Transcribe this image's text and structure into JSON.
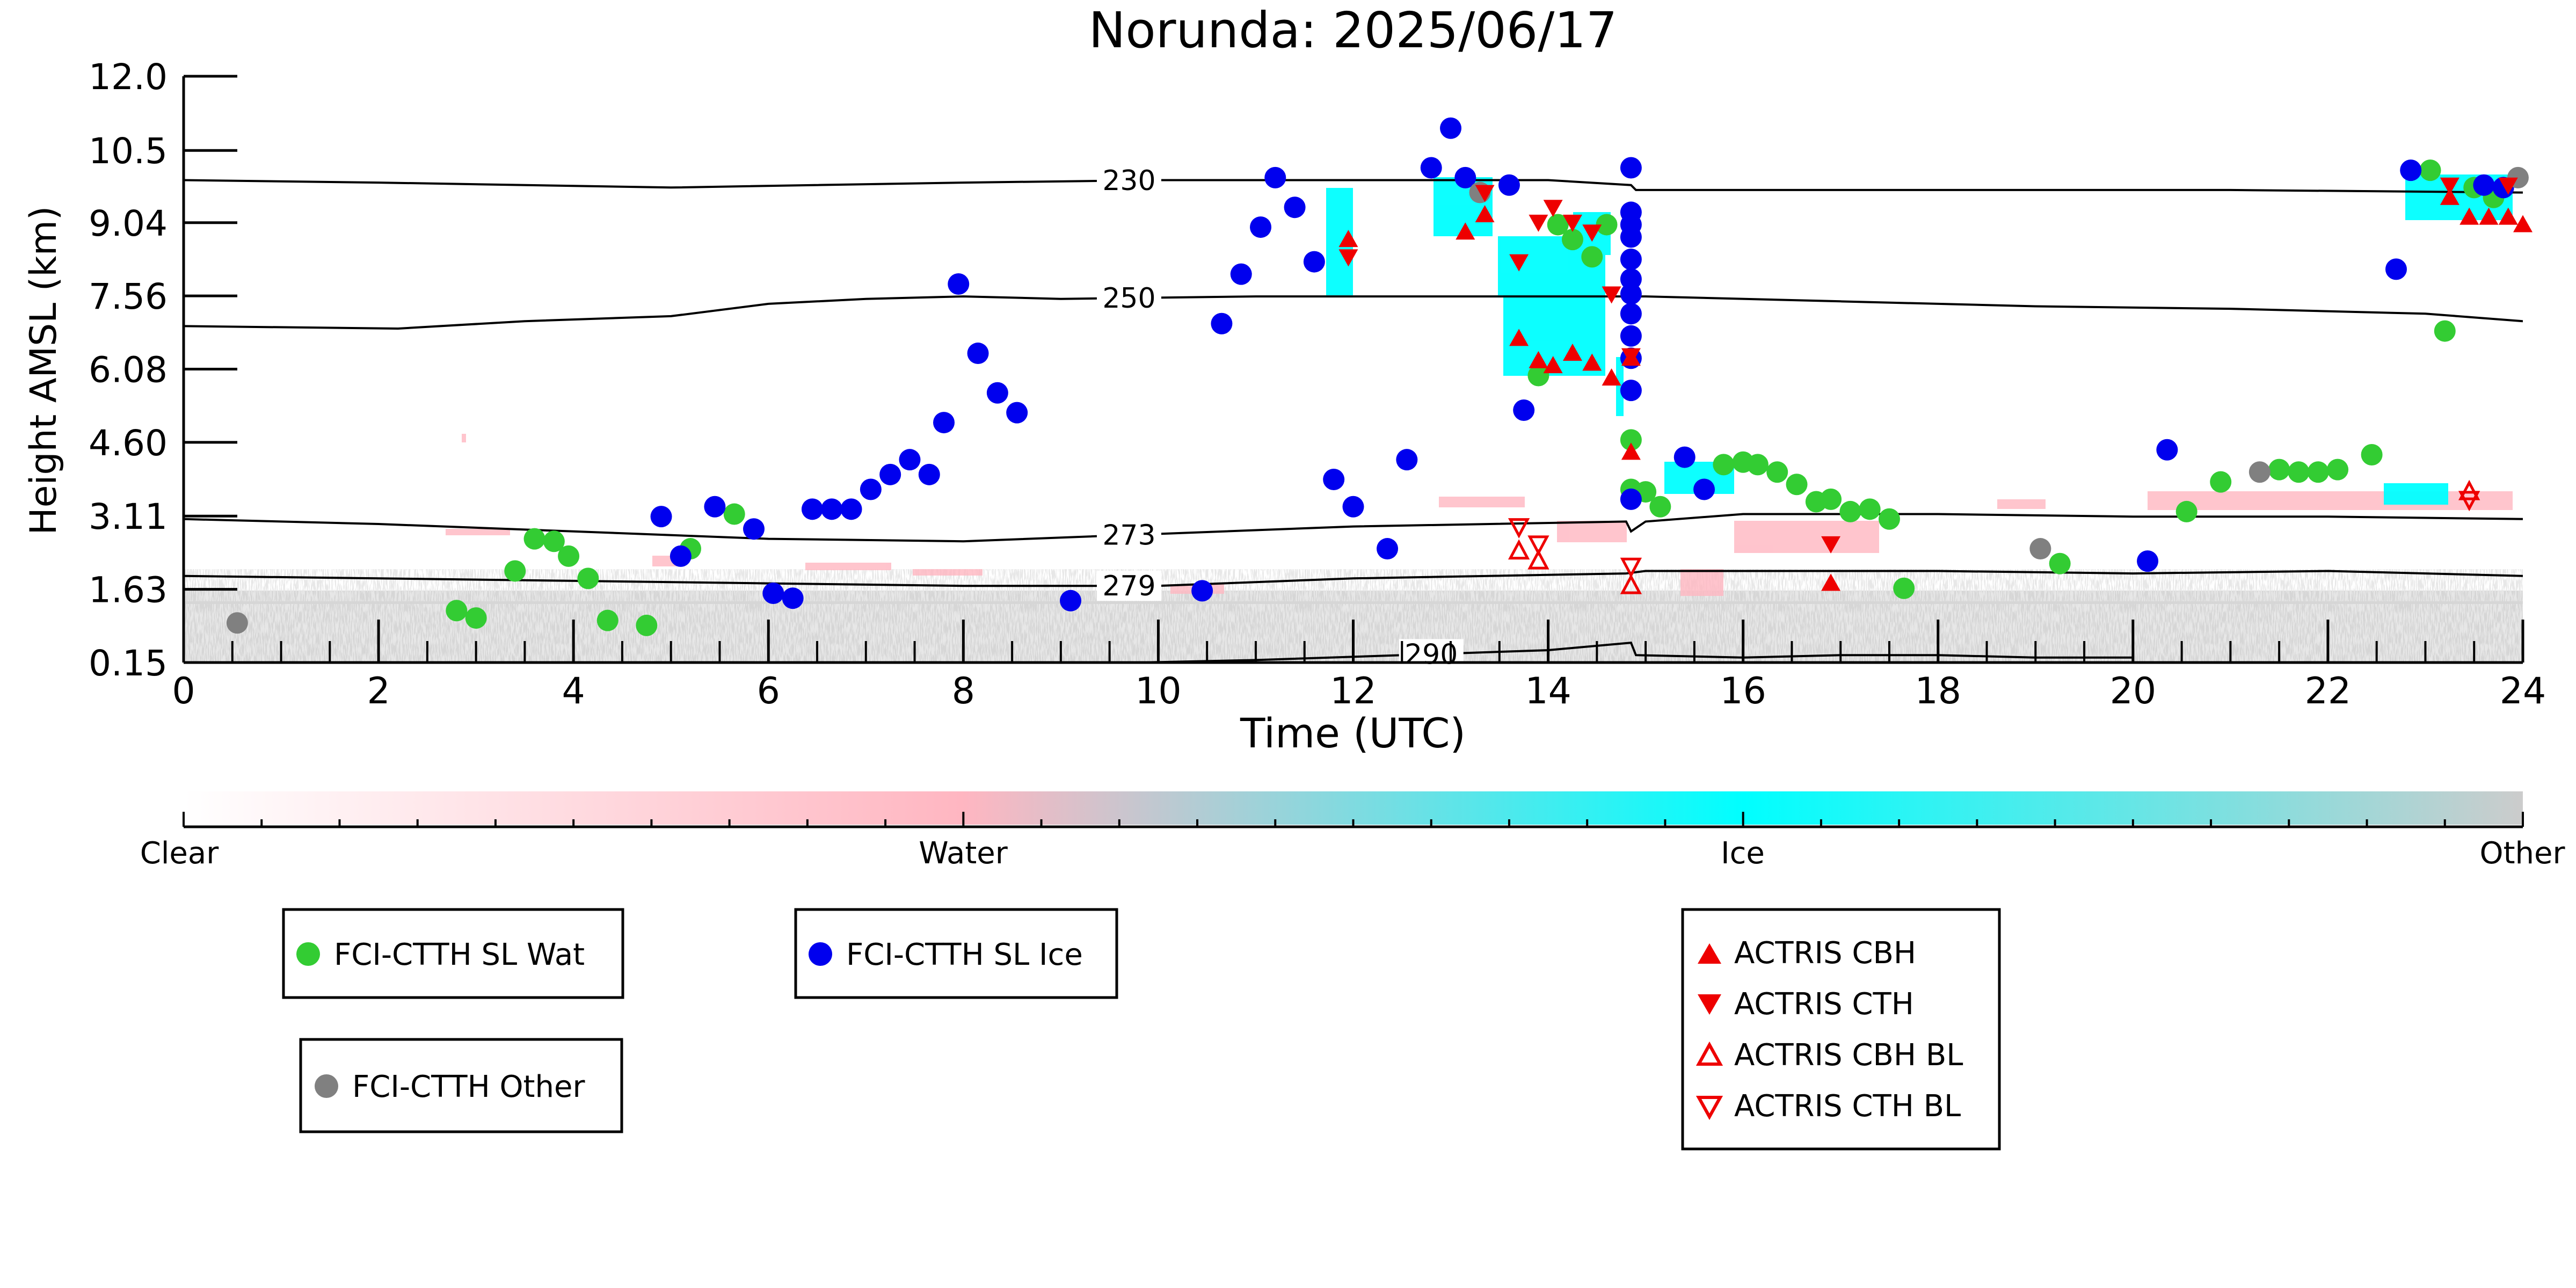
{
  "chart_data": {
    "type": "scatter",
    "title": "Norunda: 2025/06/17",
    "xlabel": "Time (UTC)",
    "ylabel": "Height AMSL (km)",
    "xlim": [
      0,
      24
    ],
    "ylim": [
      0.15,
      12.0
    ],
    "xticks": [
      "0",
      "2",
      "4",
      "6",
      "8",
      "10",
      "12",
      "14",
      "16",
      "18",
      "20",
      "22",
      "24"
    ],
    "yticks": [
      "0.15",
      "1.63",
      "3.11",
      "4.60",
      "6.08",
      "7.56",
      "9.04",
      "10.5",
      "12.0"
    ],
    "grid": false,
    "colorbar": {
      "labels": [
        "Clear",
        "Water",
        "Ice",
        "Other"
      ],
      "colors": [
        "#ffffff",
        "#ffb6c1",
        "#00ffff",
        "#cccccc"
      ]
    },
    "contours": [
      {
        "label": "230",
        "points": [
          [
            0,
            9.9
          ],
          [
            2,
            9.85
          ],
          [
            5,
            9.75
          ],
          [
            8,
            9.85
          ],
          [
            10,
            9.9
          ],
          [
            14,
            9.9
          ],
          [
            14.85,
            9.8
          ],
          [
            14.9,
            9.7
          ],
          [
            18,
            9.7
          ],
          [
            21,
            9.7
          ],
          [
            24,
            9.65
          ]
        ]
      },
      {
        "label": "250",
        "points": [
          [
            0,
            6.95
          ],
          [
            2.2,
            6.9
          ],
          [
            3.5,
            7.05
          ],
          [
            5,
            7.15
          ],
          [
            6,
            7.4
          ],
          [
            7,
            7.5
          ],
          [
            8,
            7.55
          ],
          [
            9,
            7.5
          ],
          [
            11,
            7.55
          ],
          [
            13,
            7.55
          ],
          [
            15,
            7.55
          ],
          [
            17,
            7.45
          ],
          [
            19,
            7.35
          ],
          [
            21,
            7.3
          ],
          [
            23,
            7.2
          ],
          [
            24,
            7.05
          ]
        ]
      },
      {
        "label": "273",
        "points": [
          [
            0,
            3.05
          ],
          [
            2,
            2.95
          ],
          [
            4,
            2.8
          ],
          [
            6,
            2.65
          ],
          [
            8,
            2.6
          ],
          [
            10,
            2.75
          ],
          [
            12,
            2.9
          ],
          [
            14.8,
            3.0
          ],
          [
            14.85,
            2.8
          ],
          [
            15,
            3.0
          ],
          [
            16,
            3.15
          ],
          [
            18,
            3.15
          ],
          [
            20,
            3.1
          ],
          [
            22,
            3.1
          ],
          [
            24,
            3.05
          ]
        ]
      },
      {
        "label": "279",
        "points": [
          [
            0,
            1.9
          ],
          [
            2,
            1.85
          ],
          [
            4,
            1.8
          ],
          [
            6,
            1.75
          ],
          [
            8,
            1.7
          ],
          [
            10,
            1.7
          ],
          [
            12,
            1.85
          ],
          [
            14.8,
            1.95
          ],
          [
            15,
            2.0
          ],
          [
            18,
            2.0
          ],
          [
            20,
            1.95
          ],
          [
            22,
            2.0
          ],
          [
            24,
            1.9
          ]
        ]
      },
      {
        "label": "290",
        "points": [
          [
            9.8,
            0.15
          ],
          [
            11,
            0.2
          ],
          [
            12.5,
            0.3
          ],
          [
            14,
            0.4
          ],
          [
            14.85,
            0.55
          ],
          [
            14.9,
            0.3
          ],
          [
            16,
            0.25
          ],
          [
            17,
            0.3
          ],
          [
            18,
            0.3
          ],
          [
            19,
            0.25
          ],
          [
            20,
            0.25
          ]
        ]
      }
    ],
    "series": [
      {
        "name": "FCI-CTTH SL Wat",
        "color": "#33cc33",
        "marker": "circle",
        "points": [
          [
            2.8,
            1.2
          ],
          [
            3.0,
            1.05
          ],
          [
            3.4,
            2.0
          ],
          [
            3.6,
            2.65
          ],
          [
            3.8,
            2.6
          ],
          [
            3.95,
            2.3
          ],
          [
            4.15,
            1.85
          ],
          [
            4.35,
            1.0
          ],
          [
            4.75,
            0.9
          ],
          [
            5.2,
            2.45
          ],
          [
            5.65,
            3.15
          ],
          [
            13.9,
            5.95
          ],
          [
            14.1,
            9.0
          ],
          [
            14.25,
            8.7
          ],
          [
            14.45,
            8.35
          ],
          [
            14.6,
            9.0
          ],
          [
            14.85,
            4.65
          ],
          [
            14.85,
            3.65
          ],
          [
            15.0,
            3.6
          ],
          [
            15.15,
            3.3
          ],
          [
            15.8,
            4.15
          ],
          [
            16.0,
            4.2
          ],
          [
            16.15,
            4.15
          ],
          [
            16.35,
            4.0
          ],
          [
            16.55,
            3.75
          ],
          [
            16.75,
            3.4
          ],
          [
            16.9,
            3.45
          ],
          [
            17.1,
            3.2
          ],
          [
            17.3,
            3.25
          ],
          [
            17.5,
            3.05
          ],
          [
            17.65,
            1.65
          ],
          [
            19.25,
            2.15
          ],
          [
            20.55,
            3.2
          ],
          [
            20.9,
            3.8
          ],
          [
            21.5,
            4.05
          ],
          [
            21.7,
            4.0
          ],
          [
            21.9,
            4.0
          ],
          [
            22.1,
            4.05
          ],
          [
            22.45,
            4.35
          ],
          [
            23.05,
            10.1
          ],
          [
            23.2,
            6.85
          ],
          [
            23.5,
            9.75
          ],
          [
            23.7,
            9.55
          ]
        ]
      },
      {
        "name": "FCI-CTTH SL Ice",
        "color": "#0000ee",
        "marker": "circle",
        "points": [
          [
            4.9,
            3.1
          ],
          [
            5.1,
            2.3
          ],
          [
            5.45,
            3.3
          ],
          [
            5.85,
            2.85
          ],
          [
            6.05,
            1.55
          ],
          [
            6.25,
            1.45
          ],
          [
            6.45,
            3.25
          ],
          [
            6.65,
            3.25
          ],
          [
            6.85,
            3.25
          ],
          [
            7.05,
            3.65
          ],
          [
            7.25,
            3.95
          ],
          [
            7.45,
            4.25
          ],
          [
            7.65,
            3.95
          ],
          [
            7.8,
            5.0
          ],
          [
            7.95,
            7.8
          ],
          [
            8.15,
            6.4
          ],
          [
            8.35,
            5.6
          ],
          [
            8.55,
            5.2
          ],
          [
            9.1,
            1.4
          ],
          [
            10.45,
            1.6
          ],
          [
            10.65,
            7.0
          ],
          [
            10.85,
            8.0
          ],
          [
            11.05,
            8.95
          ],
          [
            11.2,
            9.95
          ],
          [
            11.4,
            9.35
          ],
          [
            11.6,
            8.25
          ],
          [
            11.8,
            3.85
          ],
          [
            12.0,
            3.3
          ],
          [
            12.35,
            2.45
          ],
          [
            12.55,
            4.25
          ],
          [
            12.8,
            10.15
          ],
          [
            13.0,
            10.95
          ],
          [
            13.15,
            9.95
          ],
          [
            13.6,
            9.8
          ],
          [
            13.75,
            5.25
          ],
          [
            14.85,
            10.15
          ],
          [
            14.85,
            9.25
          ],
          [
            14.85,
            9.0
          ],
          [
            14.85,
            8.75
          ],
          [
            14.85,
            8.3
          ],
          [
            14.85,
            7.9
          ],
          [
            14.85,
            7.6
          ],
          [
            14.85,
            7.2
          ],
          [
            14.85,
            6.75
          ],
          [
            14.85,
            6.3
          ],
          [
            14.85,
            5.65
          ],
          [
            14.85,
            3.45
          ],
          [
            15.4,
            4.3
          ],
          [
            15.6,
            3.65
          ],
          [
            20.15,
            2.2
          ],
          [
            20.35,
            4.45
          ],
          [
            22.7,
            8.1
          ],
          [
            22.85,
            10.1
          ],
          [
            23.6,
            9.8
          ],
          [
            23.8,
            9.75
          ]
        ]
      },
      {
        "name": "FCI-CTTH Other",
        "color": "#808080",
        "marker": "circle",
        "points": [
          [
            0.55,
            0.95
          ],
          [
            13.3,
            9.65
          ],
          [
            19.05,
            2.45
          ],
          [
            21.3,
            4.0
          ],
          [
            23.95,
            9.95
          ]
        ]
      },
      {
        "name": "ACTRIS CBH",
        "color": "#ee0000",
        "marker": "triangle-up",
        "points": [
          [
            11.95,
            8.7
          ],
          [
            13.15,
            8.85
          ],
          [
            13.35,
            9.2
          ],
          [
            13.7,
            6.7
          ],
          [
            13.9,
            6.25
          ],
          [
            14.05,
            6.15
          ],
          [
            14.25,
            6.4
          ],
          [
            14.45,
            6.2
          ],
          [
            14.65,
            5.9
          ],
          [
            14.85,
            6.3
          ],
          [
            14.85,
            4.4
          ],
          [
            16.9,
            1.75
          ],
          [
            23.25,
            9.55
          ],
          [
            23.45,
            9.15
          ],
          [
            23.65,
            9.15
          ],
          [
            23.85,
            9.15
          ],
          [
            24.0,
            9.0
          ]
        ]
      },
      {
        "name": "ACTRIS CTH",
        "color": "#ee0000",
        "marker": "triangle-down",
        "points": [
          [
            11.95,
            8.35
          ],
          [
            13.35,
            9.65
          ],
          [
            13.7,
            8.25
          ],
          [
            13.9,
            9.05
          ],
          [
            14.05,
            9.35
          ],
          [
            14.25,
            9.05
          ],
          [
            14.45,
            8.85
          ],
          [
            14.65,
            7.6
          ],
          [
            14.85,
            6.35
          ],
          [
            16.9,
            2.55
          ],
          [
            23.25,
            9.8
          ],
          [
            23.85,
            9.8
          ]
        ]
      },
      {
        "name": "ACTRIS CBH BL",
        "color": "#ee0000",
        "marker": "triangle-up-open",
        "points": [
          [
            13.7,
            2.4
          ],
          [
            13.9,
            2.2
          ],
          [
            14.85,
            1.7
          ],
          [
            23.45,
            3.6
          ]
        ]
      },
      {
        "name": "ACTRIS CTH BL",
        "color": "#ee0000",
        "marker": "triangle-down-open",
        "points": [
          [
            13.7,
            2.9
          ],
          [
            13.9,
            2.55
          ],
          [
            14.85,
            2.1
          ],
          [
            23.45,
            3.45
          ]
        ]
      }
    ]
  }
}
